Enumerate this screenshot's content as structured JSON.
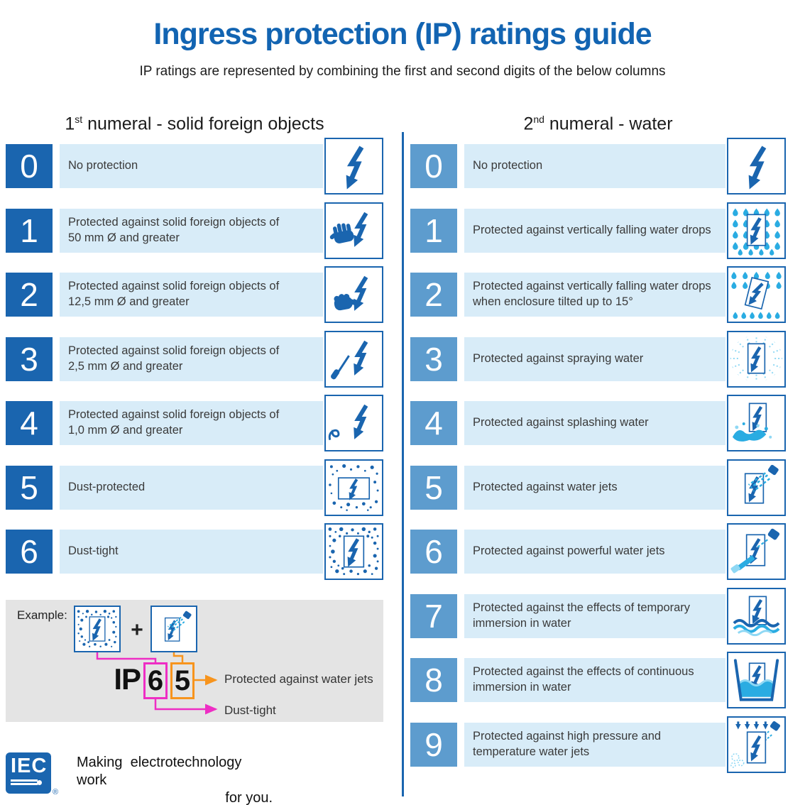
{
  "page": {
    "title": "Ingress protection (IP) ratings guide",
    "subtitle": "IP ratings are represented by combining the first and second digits of the below columns"
  },
  "columns": {
    "solids": {
      "heading_num": "1",
      "heading_sup": "st",
      "heading_rest": " numeral - solid foreign objects",
      "rows": [
        {
          "digit": "0",
          "text": "No protection",
          "icon": "bolt-icon"
        },
        {
          "digit": "1",
          "text": "Protected against solid foreign objects of\n50 mm Ø and greater",
          "icon": "hand-bolt-icon"
        },
        {
          "digit": "2",
          "text": "Protected against solid foreign objects of\n12,5 mm Ø and greater",
          "icon": "finger-bolt-icon"
        },
        {
          "digit": "3",
          "text": "Protected against solid foreign objects of\n2,5 mm Ø and greater",
          "icon": "tool-bolt-icon"
        },
        {
          "digit": "4",
          "text": "Protected against solid foreign objects of\n1,0 mm Ø and greater",
          "icon": "wire-bolt-icon"
        },
        {
          "digit": "5",
          "text": "Dust-protected",
          "icon": "dust-protected-icon"
        },
        {
          "digit": "6",
          "text": "Dust-tight",
          "icon": "dust-tight-icon"
        }
      ]
    },
    "water": {
      "heading_num": "2",
      "heading_sup": "nd",
      "heading_rest": " numeral - water",
      "rows": [
        {
          "digit": "0",
          "text": "No protection",
          "icon": "bolt-icon"
        },
        {
          "digit": "1",
          "text": "Protected against vertically falling water drops",
          "icon": "drops-icon"
        },
        {
          "digit": "2",
          "text": "Protected against vertically falling water drops\nwhen enclosure tilted up to 15°",
          "icon": "tilted-drops-icon"
        },
        {
          "digit": "3",
          "text": "Protected against spraying water",
          "icon": "spray-icon"
        },
        {
          "digit": "4",
          "text": "Protected against splashing water",
          "icon": "splash-icon"
        },
        {
          "digit": "5",
          "text": "Protected against water jets",
          "icon": "water-jet-icon"
        },
        {
          "digit": "6",
          "text": "Protected against powerful water jets",
          "icon": "powerful-jet-icon"
        },
        {
          "digit": "7",
          "text": "Protected against the effects of temporary\nimmersion in water",
          "icon": "temporary-immersion-icon"
        },
        {
          "digit": "8",
          "text": "Protected against the effects of continuous\nimmersion in water",
          "icon": "continuous-immersion-icon"
        },
        {
          "digit": "9",
          "text": "Protected against high pressure and\ntemperature water jets",
          "icon": "high-pressure-icon"
        }
      ]
    }
  },
  "example": {
    "label": "Example:",
    "plus": "+",
    "prefix": "IP",
    "digit1": "6",
    "digit2": "5",
    "icon1": "dust-tight-icon",
    "icon2": "water-jet-icon",
    "digit1_meaning": "Dust-tight",
    "digit2_meaning": "Protected against water jets"
  },
  "footer": {
    "logo": "IEC",
    "registered": "®",
    "tagline_line1": "Making  electrotechnology work",
    "tagline_line2": "for you."
  },
  "colors": {
    "title": "#1264b2",
    "primary": "#1a65af",
    "right_digit": "#5d9cce",
    "band": "#d8ecf8",
    "cyan": "#2aace2",
    "cyan_light": "#8fd8f4",
    "magenta": "#ee2ec4",
    "orange": "#f7941d",
    "example_bg": "#e4e4e4"
  }
}
